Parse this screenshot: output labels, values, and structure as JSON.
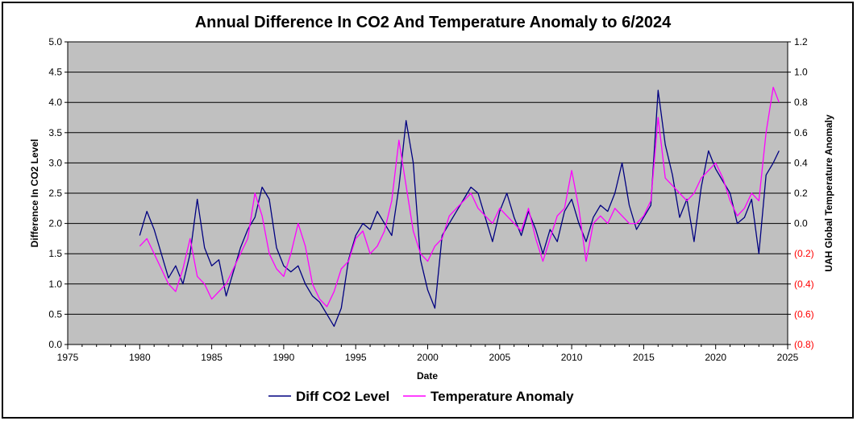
{
  "chart_data": {
    "type": "line",
    "title": "Annual Difference In CO2  And Temperature Anomaly to 6/2024",
    "xlabel": "Date",
    "ylabel_left": "Difference In CO2 Level",
    "ylabel_right": "UAH Global Temperature Anomaly",
    "xlim": [
      1975,
      2025
    ],
    "ylim_left": [
      0.0,
      5.0
    ],
    "ylim_right": [
      -0.8,
      1.2
    ],
    "x_ticks": [
      "1975",
      "1980",
      "1985",
      "1990",
      "1995",
      "2000",
      "2005",
      "2010",
      "2015",
      "2020",
      "2025"
    ],
    "y_left_ticks": [
      "0.0",
      "0.5",
      "1.0",
      "1.5",
      "2.0",
      "2.5",
      "3.0",
      "3.5",
      "4.0",
      "4.5",
      "5.0"
    ],
    "y_right_ticks": [
      "(0.8)",
      "(0.6)",
      "(0.4)",
      "(0.2)",
      "0.0",
      "0.2",
      "0.4",
      "0.6",
      "0.8",
      "1.0",
      "1.2"
    ],
    "grid": true,
    "plot_background": "#c0c0c0",
    "legend_position": "bottom",
    "negative_right_tick_color": "#ff0000",
    "series": [
      {
        "name": "Diff CO2 Level",
        "axis": "left",
        "color": "#000080",
        "x": [
          1980.0,
          1980.5,
          1981.0,
          1981.5,
          1982.0,
          1982.5,
          1983.0,
          1983.5,
          1984.0,
          1984.5,
          1985.0,
          1985.5,
          1986.0,
          1986.5,
          1987.0,
          1987.5,
          1988.0,
          1988.5,
          1989.0,
          1989.5,
          1990.0,
          1990.5,
          1991.0,
          1991.5,
          1992.0,
          1992.5,
          1993.0,
          1993.5,
          1994.0,
          1994.5,
          1995.0,
          1995.5,
          1996.0,
          1996.5,
          1997.0,
          1997.5,
          1998.0,
          1998.5,
          1999.0,
          1999.5,
          2000.0,
          2000.5,
          2001.0,
          2001.5,
          2002.0,
          2002.5,
          2003.0,
          2003.5,
          2004.0,
          2004.5,
          2005.0,
          2005.5,
          2006.0,
          2006.5,
          2007.0,
          2007.5,
          2008.0,
          2008.5,
          2009.0,
          2009.5,
          2010.0,
          2010.5,
          2011.0,
          2011.5,
          2012.0,
          2012.5,
          2013.0,
          2013.5,
          2014.0,
          2014.5,
          2015.0,
          2015.5,
          2016.0,
          2016.5,
          2017.0,
          2017.5,
          2018.0,
          2018.5,
          2019.0,
          2019.5,
          2020.0,
          2020.5,
          2021.0,
          2021.5,
          2022.0,
          2022.5,
          2023.0,
          2023.5,
          2024.0,
          2024.4
        ],
        "values": [
          1.8,
          2.2,
          1.9,
          1.5,
          1.1,
          1.3,
          1.0,
          1.5,
          2.4,
          1.6,
          1.3,
          1.4,
          0.8,
          1.2,
          1.6,
          1.9,
          2.1,
          2.6,
          2.4,
          1.6,
          1.3,
          1.2,
          1.3,
          1.0,
          0.8,
          0.7,
          0.5,
          0.3,
          0.6,
          1.4,
          1.8,
          2.0,
          1.9,
          2.2,
          2.0,
          1.8,
          2.6,
          3.7,
          3.0,
          1.4,
          0.9,
          0.6,
          1.8,
          2.0,
          2.2,
          2.4,
          2.6,
          2.5,
          2.1,
          1.7,
          2.2,
          2.5,
          2.1,
          1.8,
          2.2,
          1.9,
          1.5,
          1.9,
          1.7,
          2.2,
          2.4,
          2.0,
          1.7,
          2.1,
          2.3,
          2.2,
          2.5,
          3.0,
          2.3,
          1.9,
          2.1,
          2.3,
          4.2,
          3.3,
          2.8,
          2.1,
          2.4,
          1.7,
          2.6,
          3.2,
          2.9,
          2.7,
          2.5,
          2.0,
          2.1,
          2.4,
          1.5,
          2.8,
          3.0,
          3.2
        ]
      },
      {
        "name": "Temperature Anomaly",
        "axis": "right",
        "color": "#ff00ff",
        "x": [
          1980.0,
          1980.5,
          1981.0,
          1981.5,
          1982.0,
          1982.5,
          1983.0,
          1983.5,
          1984.0,
          1984.5,
          1985.0,
          1985.5,
          1986.0,
          1986.5,
          1987.0,
          1987.5,
          1988.0,
          1988.5,
          1989.0,
          1989.5,
          1990.0,
          1990.5,
          1991.0,
          1991.5,
          1992.0,
          1992.5,
          1993.0,
          1993.5,
          1994.0,
          1994.5,
          1995.0,
          1995.5,
          1996.0,
          1996.5,
          1997.0,
          1997.5,
          1998.0,
          1998.5,
          1999.0,
          1999.5,
          2000.0,
          2000.5,
          2001.0,
          2001.5,
          2002.0,
          2002.5,
          2003.0,
          2003.5,
          2004.0,
          2004.5,
          2005.0,
          2005.5,
          2006.0,
          2006.5,
          2007.0,
          2007.5,
          2008.0,
          2008.5,
          2009.0,
          2009.5,
          2010.0,
          2010.5,
          2011.0,
          2011.5,
          2012.0,
          2012.5,
          2013.0,
          2013.5,
          2014.0,
          2014.5,
          2015.0,
          2015.5,
          2016.0,
          2016.5,
          2017.0,
          2017.5,
          2018.0,
          2018.5,
          2019.0,
          2019.5,
          2020.0,
          2020.5,
          2021.0,
          2021.5,
          2022.0,
          2022.5,
          2023.0,
          2023.5,
          2024.0,
          2024.4
        ],
        "values": [
          -0.15,
          -0.1,
          -0.2,
          -0.3,
          -0.4,
          -0.45,
          -0.3,
          -0.1,
          -0.35,
          -0.4,
          -0.5,
          -0.45,
          -0.4,
          -0.3,
          -0.2,
          -0.1,
          0.2,
          0.05,
          -0.2,
          -0.3,
          -0.35,
          -0.2,
          0.0,
          -0.15,
          -0.4,
          -0.5,
          -0.55,
          -0.45,
          -0.3,
          -0.25,
          -0.1,
          -0.05,
          -0.2,
          -0.15,
          -0.05,
          0.15,
          0.55,
          0.25,
          -0.05,
          -0.2,
          -0.25,
          -0.15,
          -0.1,
          0.05,
          0.1,
          0.15,
          0.2,
          0.1,
          0.05,
          0.0,
          0.1,
          0.05,
          0.0,
          -0.05,
          0.1,
          -0.1,
          -0.25,
          -0.1,
          0.05,
          0.1,
          0.35,
          0.1,
          -0.25,
          0.0,
          0.05,
          0.0,
          0.1,
          0.05,
          0.0,
          0.0,
          0.05,
          0.15,
          0.7,
          0.3,
          0.25,
          0.2,
          0.15,
          0.2,
          0.3,
          0.35,
          0.4,
          0.3,
          0.15,
          0.05,
          0.1,
          0.2,
          0.15,
          0.6,
          0.9,
          0.8
        ]
      }
    ]
  }
}
